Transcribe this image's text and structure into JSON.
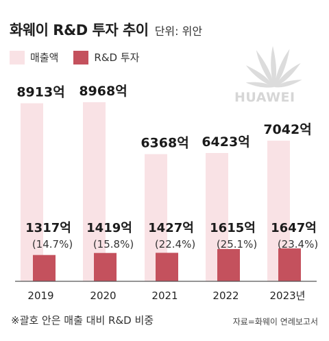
{
  "header": {
    "title": "화웨이 R&D 투자 추이",
    "unit": "단위: 위안"
  },
  "legend": {
    "revenue_label": "매출액",
    "rnd_label": "R&D 투자"
  },
  "logo": {
    "text": "HUAWEI"
  },
  "footnote": "※괄호 안은 매출 대비 R&D 비중",
  "source": "자료=화웨이 연례보고서",
  "colors": {
    "revenue": "#f9e2e5",
    "rnd": "#c4515d",
    "axis": "#555555"
  },
  "chart_data": {
    "type": "bar",
    "categories": [
      "2019",
      "2020",
      "2021",
      "2022",
      "2023년"
    ],
    "series": [
      {
        "name": "매출액",
        "values": [
          8913,
          8968,
          6368,
          6423,
          7042
        ],
        "labels": [
          "8913억",
          "8968억",
          "6368억",
          "6423억",
          "7042억"
        ]
      },
      {
        "name": "R&D 투자",
        "values": [
          1317,
          1419,
          1427,
          1615,
          1647
        ],
        "labels": [
          "1317억",
          "1419억",
          "1427억",
          "1615억",
          "1647억"
        ]
      }
    ],
    "ratio_labels": [
      "(14.7%)",
      "(15.8%)",
      "(22.4%)",
      "(25.1%)",
      "(23.4%)"
    ],
    "title": "화웨이 R&D 투자 추이",
    "xlabel": "",
    "ylabel": "",
    "ylim": [
      0,
      9000
    ],
    "grid": false,
    "legend_position": "top-left"
  }
}
